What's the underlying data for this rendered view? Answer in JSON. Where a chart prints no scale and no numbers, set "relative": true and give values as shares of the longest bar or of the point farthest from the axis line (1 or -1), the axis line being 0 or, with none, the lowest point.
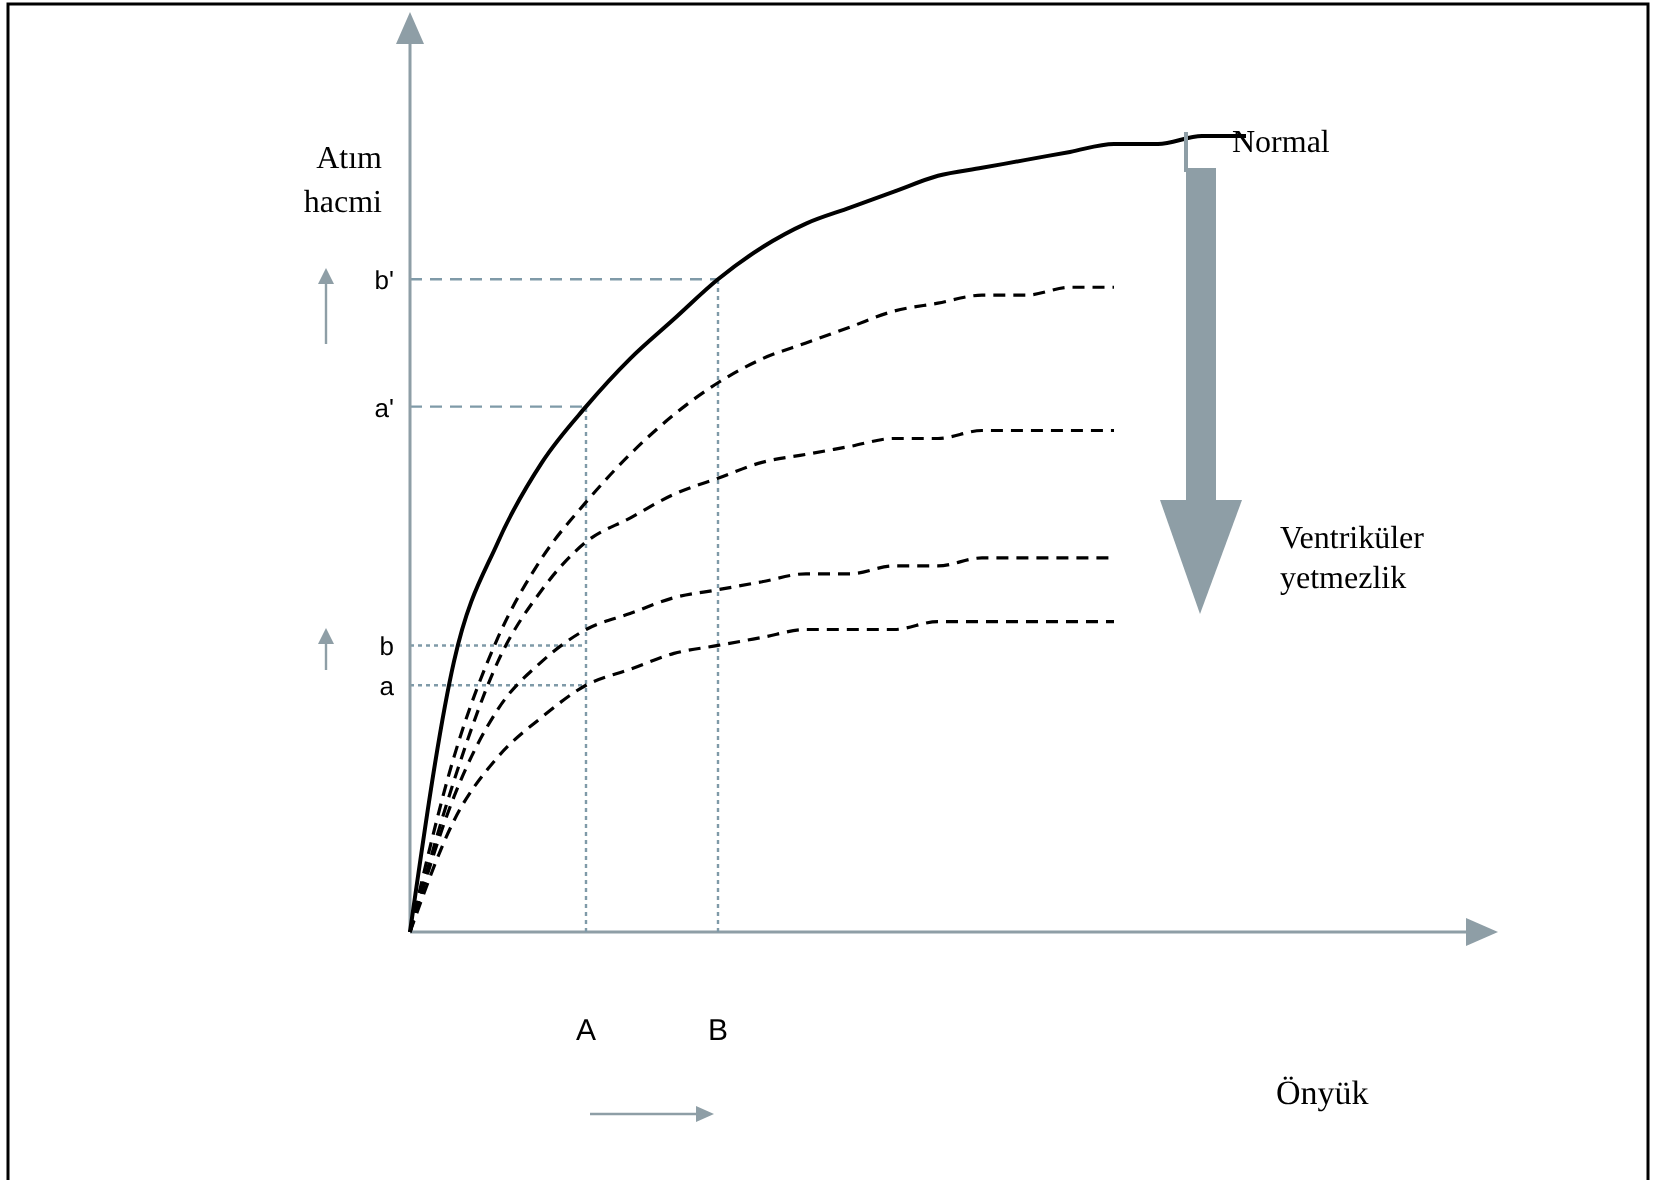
{
  "chart_data": {
    "type": "line",
    "relative": true,
    "xlabel": "Önyük",
    "ylabel": "Atım hacmi",
    "categories": [
      null,
      null,
      null,
      null,
      "A",
      null,
      null,
      "B",
      null,
      null,
      null,
      null,
      null,
      null,
      null,
      null,
      null,
      null,
      null,
      null,
      null,
      null,
      null,
      null,
      null
    ],
    "annotations": [
      "Normal",
      "Ventriküler yetmezlik"
    ],
    "marker": "none",
    "series": [
      {
        "color": "#000000",
        "line_style": "solid",
        "values": [
          0,
          0.34,
          0.49,
          0.59,
          0.66,
          0.72,
          0.77,
          0.82,
          0.86,
          0.89,
          0.91,
          0.93,
          0.95,
          0.96,
          0.97,
          0.98,
          0.99,
          0.99,
          1.0,
          1.0,
          null,
          null,
          null,
          null,
          null
        ]
      },
      {
        "color": "#000000",
        "line_style": "dashed",
        "values": [
          0,
          0.22,
          0.37,
          0.47,
          0.54,
          0.6,
          0.65,
          0.69,
          0.72,
          0.74,
          0.76,
          0.78,
          0.79,
          0.8,
          0.8,
          0.81,
          0.81,
          null,
          null,
          null,
          null,
          null,
          null,
          null,
          null
        ]
      },
      {
        "color": "#000000",
        "line_style": "dashed",
        "values": [
          0,
          0.19,
          0.34,
          0.43,
          0.49,
          0.52,
          0.55,
          0.57,
          0.59,
          0.6,
          0.61,
          0.62,
          0.62,
          0.63,
          0.63,
          0.63,
          0.63,
          null,
          null,
          null,
          null,
          null,
          null,
          null,
          null
        ]
      },
      {
        "color": "#000000",
        "line_style": "dashed",
        "values": [
          0,
          0.17,
          0.28,
          0.34,
          0.38,
          0.4,
          0.42,
          0.43,
          0.44,
          0.45,
          0.45,
          0.46,
          0.46,
          0.47,
          0.47,
          0.47,
          0.47,
          null,
          null,
          null,
          null,
          null,
          null,
          null,
          null
        ]
      },
      {
        "color": "#000000",
        "line_style": "dashed",
        "values": [
          0,
          0.14,
          0.22,
          0.27,
          0.31,
          0.33,
          0.35,
          0.36,
          0.37,
          0.38,
          0.38,
          0.38,
          0.39,
          0.39,
          0.39,
          0.39,
          0.39,
          null,
          null,
          null,
          null,
          null,
          null,
          null,
          null
        ]
      }
    ],
    "ref_lines": [
      {
        "axis": "y",
        "value": 0.82,
        "label": "b'",
        "color": "#7f9aa8",
        "line_style": "dashed"
      },
      {
        "axis": "y",
        "value": 0.66,
        "label": "a'",
        "color": "#7f9aa8",
        "line_style": "dashed"
      },
      {
        "axis": "y",
        "value": 0.36,
        "label": "b",
        "color": "#7f9aa8",
        "line_style": "dotted"
      },
      {
        "axis": "y",
        "value": 0.31,
        "label": "a",
        "color": "#7f9aa8",
        "line_style": "dotted"
      }
    ]
  }
}
